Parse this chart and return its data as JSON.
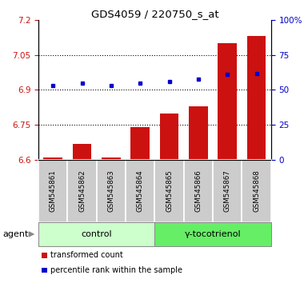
{
  "title": "GDS4059 / 220750_s_at",
  "samples": [
    "GSM545861",
    "GSM545862",
    "GSM545863",
    "GSM545864",
    "GSM545865",
    "GSM545866",
    "GSM545867",
    "GSM545868"
  ],
  "bar_values": [
    6.61,
    6.67,
    6.61,
    6.74,
    6.8,
    6.83,
    7.1,
    7.13
  ],
  "bar_base": 6.6,
  "blue_values": [
    6.92,
    6.93,
    6.92,
    6.93,
    6.935,
    6.945,
    6.965,
    6.97
  ],
  "bar_color": "#cc1111",
  "blue_color": "#0000cc",
  "ylim_left": [
    6.6,
    7.2
  ],
  "ylim_right": [
    0,
    100
  ],
  "yticks_left": [
    6.6,
    6.75,
    6.9,
    7.05,
    7.2
  ],
  "yticks_right": [
    0,
    25,
    50,
    75,
    100
  ],
  "ytick_labels_left": [
    "6.6",
    "6.75",
    "6.9",
    "7.05",
    "7.2"
  ],
  "ytick_labels_right": [
    "0",
    "25",
    "50",
    "75",
    "100%"
  ],
  "grid_values": [
    6.75,
    6.9,
    7.05
  ],
  "control_label": "control",
  "treatment_label": "γ-tocotrienol",
  "agent_label": "agent",
  "legend_bar_label": "transformed count",
  "legend_dot_label": "percentile rank within the sample",
  "control_bg": "#ccffcc",
  "treatment_bg": "#66ee66",
  "sample_bg": "#cccccc",
  "bar_width": 0.65
}
